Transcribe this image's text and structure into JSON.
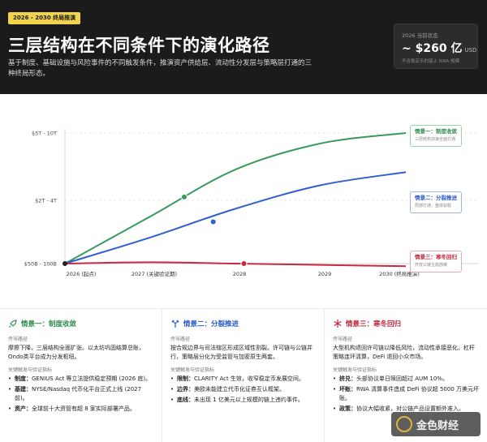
{
  "header": {
    "badge": "2026 - 2030 终局推演",
    "title": "三层结构在不同条件下的演化路径",
    "subtitle": "基于制度、基础设施与风险事件的不同触发条件，推演资产供给层、流动性分发层与策略层打通的三种终局形态。",
    "kpi": {
      "label": "2026 当前状态",
      "value": "~ $260 亿",
      "unit": "USD",
      "note": "不含稳定币的链上 RWA 规模"
    }
  },
  "colors": {
    "green": "#3a9a5c",
    "blue": "#2f5fd0",
    "red": "#c52a40"
  },
  "chart_data": {
    "type": "line",
    "x": [
      "2026 (起点)",
      "2027 (关键验证期)",
      "2028",
      "2029",
      "2030 (终局推演)"
    ],
    "y_tick_labels": [
      "$50B - 100B",
      "$2T - 4T",
      "$5T - 10T"
    ],
    "y_scale": "categorical bands (relative magnitude)",
    "series": [
      {
        "name": "情景一：制度收敛",
        "color": "#3a9a5c",
        "values": [
          0,
          0.36,
          0.72,
          0.92,
          1.0
        ],
        "marker_x": 1.4,
        "marker_y": 0.51
      },
      {
        "name": "情景二：分裂推进",
        "color": "#2f5fd0",
        "values": [
          0,
          0.2,
          0.42,
          0.6,
          0.7
        ],
        "marker_x": 1.74,
        "marker_y": 0.32
      },
      {
        "name": "情景三：寒冬回归",
        "color": "#c52a40",
        "values": [
          0,
          0.01,
          0.0,
          -0.01,
          -0.02
        ],
        "marker_x": 2.1,
        "marker_y": 0.0
      }
    ],
    "callouts": [
      {
        "title": "情景一：制度收敛",
        "note": "三层结构加速全面打通"
      },
      {
        "title": "情景二：分裂推进",
        "note": "局部打通，整体割裂"
      },
      {
        "title": "情景三：寒冬回归",
        "note": "开放公链主题放缓"
      }
    ],
    "grid": "horizontal dashed"
  },
  "cards": [
    {
      "title": "情景一：制度收敛",
      "path_label": "传导路径",
      "path": "摩擦下降，三层结构全面扩张。以太坊巩固结算总账，Ondo类平台成为分发枢纽。",
      "metrics_label": "关键触发与验证指标",
      "items": [
        {
          "k": "制度：",
          "v": "GENIUS Act 等立法提供稳定预期 (2026 底)。"
        },
        {
          "k": "基建：",
          "v": "NYSE/Nasdaq 代币化平台正式上线 (2027前)。"
        },
        {
          "k": "资产：",
          "v": "全球前十大资管有超 8 家实际部署产品。"
        }
      ]
    },
    {
      "title": "情景二：分裂推进",
      "path_label": "传导路径",
      "path": "按合规边界与司法辖区形成区域性割裂。许可链与公链并行，策略层分化为受监管与加密原生两套。",
      "metrics_label": "关键触发与验证指标",
      "items": [
        {
          "k": "限制：",
          "v": "CLARITY Act 生效，收窄稳定币发展空间。"
        },
        {
          "k": "边界：",
          "v": "美欧未能建立代币化证券互认框架。"
        },
        {
          "k": "底线：",
          "v": "未出现 1 亿美元以上规模的链上违约事件。"
        }
      ]
    },
    {
      "title": "情景三：寒冬回归",
      "path_label": "传导路径",
      "path": "大型机构退回许可链以降低风险，流动性承接恶化，杠杆策略连环清算，DeFi 退回小众市场。",
      "metrics_label": "关键触发与验证指标",
      "items": [
        {
          "k": "挤兑：",
          "v": "头部协议单日赎回超过 AUM 10%。"
        },
        {
          "k": "坏账：",
          "v": "RWA 清算事件造成 DeFi 协议超 5000 万美元坏账。"
        },
        {
          "k": "政策：",
          "v": "协议大幅收紧，对公链产品设置额外准入。"
        }
      ]
    }
  ],
  "watermark": {
    "text": "金色财经",
    "icon": "gold-coin-logo"
  }
}
